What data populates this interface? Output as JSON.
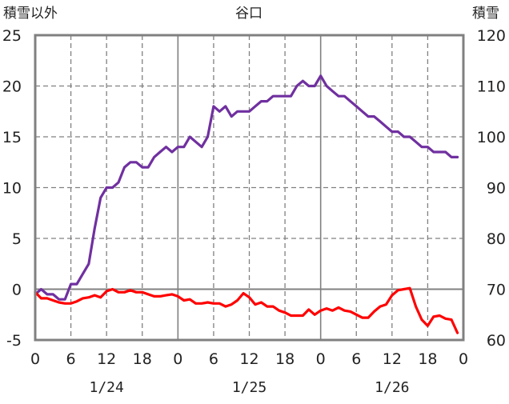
{
  "chart_data": {
    "type": "line",
    "title": "谷口",
    "left_axis_label": "積雪以外",
    "right_axis_label": "積雪",
    "x_hour_labels": [
      "0",
      "6",
      "12",
      "18",
      "0",
      "6",
      "12",
      "18",
      "0",
      "6",
      "12",
      "18",
      "0"
    ],
    "date_labels": [
      "1/24",
      "1/25",
      "1/26"
    ],
    "y_left": {
      "min": -5,
      "max": 25,
      "ticks": [
        "25",
        "20",
        "15",
        "10",
        "5",
        "0",
        "-5"
      ]
    },
    "y_right": {
      "min": 60,
      "max": 120,
      "ticks": [
        "120",
        "110",
        "100",
        "90",
        "80",
        "70",
        "60"
      ]
    },
    "grid": true,
    "series": [
      {
        "axis": "right",
        "color": "#7030a0",
        "x": [
          0,
          1,
          2,
          3,
          4,
          5,
          6,
          7,
          8,
          9,
          10,
          11,
          12,
          13,
          14,
          15,
          16,
          17,
          18,
          19,
          20,
          21,
          22,
          23,
          24,
          25,
          26,
          27,
          28,
          29,
          30,
          31,
          32,
          33,
          34,
          35,
          36,
          37,
          38,
          39,
          40,
          41,
          42,
          43,
          44,
          45,
          46,
          47,
          48,
          49,
          50,
          51,
          52,
          53,
          54,
          55,
          56,
          57,
          58,
          59,
          60,
          61,
          62,
          63,
          64,
          65,
          66,
          67,
          68,
          69,
          70,
          71
        ],
        "values": [
          69,
          70,
          69,
          69,
          68,
          68,
          71,
          71,
          73,
          75,
          82,
          88,
          90,
          90,
          91,
          94,
          95,
          95,
          94,
          94,
          96,
          97,
          98,
          97,
          98,
          98,
          100,
          99,
          98,
          100,
          106,
          105,
          106,
          104,
          105,
          105,
          105,
          106,
          107,
          107,
          108,
          108,
          108,
          108,
          110,
          111,
          110,
          110,
          112,
          110,
          109,
          108,
          108,
          107,
          106,
          105,
          104,
          104,
          103,
          102,
          101,
          101,
          100,
          100,
          99,
          98,
          98,
          97,
          97,
          97,
          96,
          96
        ]
      },
      {
        "axis": "left",
        "color": "#ff0000",
        "x": [
          0,
          1,
          2,
          3,
          4,
          5,
          6,
          7,
          8,
          9,
          10,
          11,
          12,
          13,
          14,
          15,
          16,
          17,
          18,
          19,
          20,
          21,
          22,
          23,
          24,
          25,
          26,
          27,
          28,
          29,
          30,
          31,
          32,
          33,
          34,
          35,
          36,
          37,
          38,
          39,
          40,
          41,
          42,
          43,
          44,
          45,
          46,
          47,
          48,
          49,
          50,
          51,
          52,
          53,
          54,
          55,
          56,
          57,
          58,
          59,
          60,
          61,
          62,
          63,
          64,
          65,
          66,
          67,
          68,
          69,
          70,
          71
        ],
        "values": [
          -0.3,
          -0.9,
          -0.9,
          -1.1,
          -1.3,
          -1.4,
          -1.4,
          -1.2,
          -0.9,
          -0.8,
          -0.6,
          -0.8,
          -0.2,
          0,
          -0.3,
          -0.3,
          -0.1,
          -0.3,
          -0.3,
          -0.5,
          -0.7,
          -0.7,
          -0.6,
          -0.5,
          -0.7,
          -1.1,
          -1.0,
          -1.4,
          -1.4,
          -1.3,
          -1.4,
          -1.4,
          -1.7,
          -1.5,
          -1.1,
          -0.4,
          -0.8,
          -1.5,
          -1.3,
          -1.7,
          -1.7,
          -2.1,
          -2.3,
          -2.6,
          -2.6,
          -2.6,
          -2.0,
          -2.5,
          -2.1,
          -1.9,
          -2.1,
          -1.8,
          -2.1,
          -2.2,
          -2.5,
          -2.8,
          -2.8,
          -2.2,
          -1.7,
          -1.5,
          -0.6,
          -0.1,
          0,
          0.1,
          -1.7,
          -3.0,
          -3.6,
          -2.7,
          -2.6,
          -2.9,
          -3.0,
          -4.3
        ]
      }
    ]
  }
}
